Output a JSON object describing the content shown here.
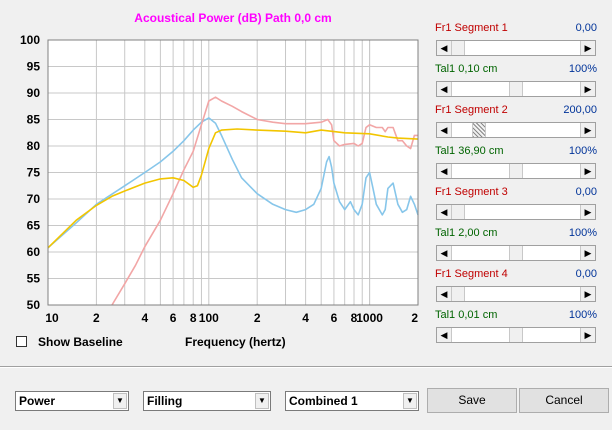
{
  "chart": {
    "title": "Acoustical Power (dB)   Path 0,0 cm",
    "xlabel": "Frequency (hertz)",
    "y_ticks": [
      "100",
      "95",
      "90",
      "85",
      "80",
      "75",
      "70",
      "65",
      "60",
      "55",
      "50"
    ],
    "x_ticks": [
      "10",
      "2",
      "4",
      "6",
      "8",
      "100",
      "2",
      "4",
      "6",
      "8",
      "1000",
      "2"
    ],
    "colors": {
      "title": "#ff00ff",
      "blue": "#87c6ea",
      "pink": "#f2a6a6",
      "yellow": "#f2c500",
      "grid": "#c8c8c8"
    }
  },
  "chart_data": {
    "type": "line",
    "title": "Acoustical Power (dB)   Path 0,0 cm",
    "xlabel": "Frequency (hertz)",
    "ylabel": "",
    "xscale": "log",
    "xlim": [
      10,
      2000
    ],
    "ylim": [
      50,
      100
    ],
    "grid": true,
    "series": [
      {
        "color": "#87c6ea",
        "x": [
          10,
          15,
          20,
          30,
          40,
          50,
          60,
          70,
          80,
          90,
          100,
          110,
          120,
          140,
          160,
          200,
          250,
          300,
          350,
          400,
          450,
          500,
          540,
          560,
          580,
          600,
          650,
          700,
          760,
          800,
          850,
          900,
          950,
          1000,
          1050,
          1100,
          1200,
          1250,
          1300,
          1400,
          1500,
          1600,
          1700,
          1800,
          1900,
          2000
        ],
        "y": [
          60.8,
          65.5,
          69,
          72.5,
          75,
          77,
          79,
          81,
          83,
          84.5,
          85.3,
          84.3,
          82,
          77.5,
          74,
          71,
          69,
          68,
          67.5,
          68,
          69,
          72,
          77,
          78,
          76,
          73,
          69.5,
          68,
          69.5,
          68,
          67,
          69,
          74,
          75,
          72,
          69,
          67,
          68,
          72,
          73,
          69,
          67.5,
          68,
          70.5,
          69,
          67
        ]
      },
      {
        "color": "#f2a6a6",
        "x": [
          25,
          30,
          35,
          40,
          50,
          60,
          70,
          80,
          90,
          100,
          110,
          120,
          140,
          160,
          200,
          250,
          300,
          400,
          500,
          550,
          580,
          600,
          650,
          700,
          800,
          850,
          900,
          950,
          1000,
          1100,
          1200,
          1250,
          1300,
          1400,
          1500,
          1600,
          1700,
          1800,
          1900,
          2000
        ],
        "y": [
          50,
          54,
          57.5,
          61,
          66,
          71,
          75.5,
          79,
          84,
          88.5,
          89.2,
          88.5,
          87.5,
          86.5,
          85,
          84.5,
          84.2,
          84.2,
          84.5,
          85,
          84,
          81,
          80,
          80.3,
          80.5,
          80,
          80.5,
          83.5,
          84,
          83.5,
          83.5,
          82.7,
          83.5,
          83.5,
          81,
          81,
          80,
          79.5,
          82,
          82
        ]
      },
      {
        "color": "#f2c500",
        "x": [
          10,
          15,
          20,
          25,
          30,
          40,
          50,
          60,
          70,
          80,
          85,
          90,
          100,
          110,
          120,
          150,
          200,
          300,
          400,
          500,
          700,
          1000,
          1300,
          1500,
          2000
        ],
        "y": [
          60.8,
          66,
          68.8,
          70.5,
          71.5,
          73,
          73.8,
          74,
          73.5,
          72.2,
          72.5,
          74.5,
          79.5,
          82.5,
          83,
          83.2,
          83,
          82.8,
          82.5,
          83,
          82.5,
          82.3,
          81.7,
          81.5,
          81.3
        ]
      }
    ]
  },
  "segments": [
    {
      "id": "fr1",
      "label": "Fr1  Segment 1",
      "value": "0,00",
      "label_color": "red"
    },
    {
      "id": "tal1",
      "label": "Tal1  0,10 cm",
      "value": "100%",
      "label_color": "green"
    },
    {
      "id": "fr2",
      "label": "Fr1  Segment 2",
      "value": "200,00",
      "label_color": "red"
    },
    {
      "id": "tal2",
      "label": "Tal1  36,90 cm",
      "value": "100%",
      "label_color": "green"
    },
    {
      "id": "fr3",
      "label": "Fr1  Segment 3",
      "value": "0,00",
      "label_color": "red"
    },
    {
      "id": "tal3",
      "label": "Tal1  2,00 cm",
      "value": "100%",
      "label_color": "green"
    },
    {
      "id": "fr4",
      "label": "Fr1  Segment 4",
      "value": "0,00",
      "label_color": "red"
    },
    {
      "id": "tal4",
      "label": "Tal1  0,01 cm",
      "value": "100%",
      "label_color": "green"
    }
  ],
  "sliders": [
    {
      "thumb": 0.0,
      "active": false
    },
    {
      "thumb": 0.5,
      "active": false
    },
    {
      "thumb": 0.18,
      "active": true
    },
    {
      "thumb": 0.5,
      "active": false
    },
    {
      "thumb": 0.0,
      "active": false
    },
    {
      "thumb": 0.5,
      "active": false
    },
    {
      "thumb": 0.0,
      "active": false
    },
    {
      "thumb": 0.5,
      "active": false
    }
  ],
  "show_baseline": {
    "label": "Show Baseline",
    "checked": false
  },
  "combos": {
    "power": "Power",
    "filling": "Filling",
    "combined": "Combined 1"
  },
  "buttons": {
    "save": "Save",
    "cancel": "Cancel"
  }
}
